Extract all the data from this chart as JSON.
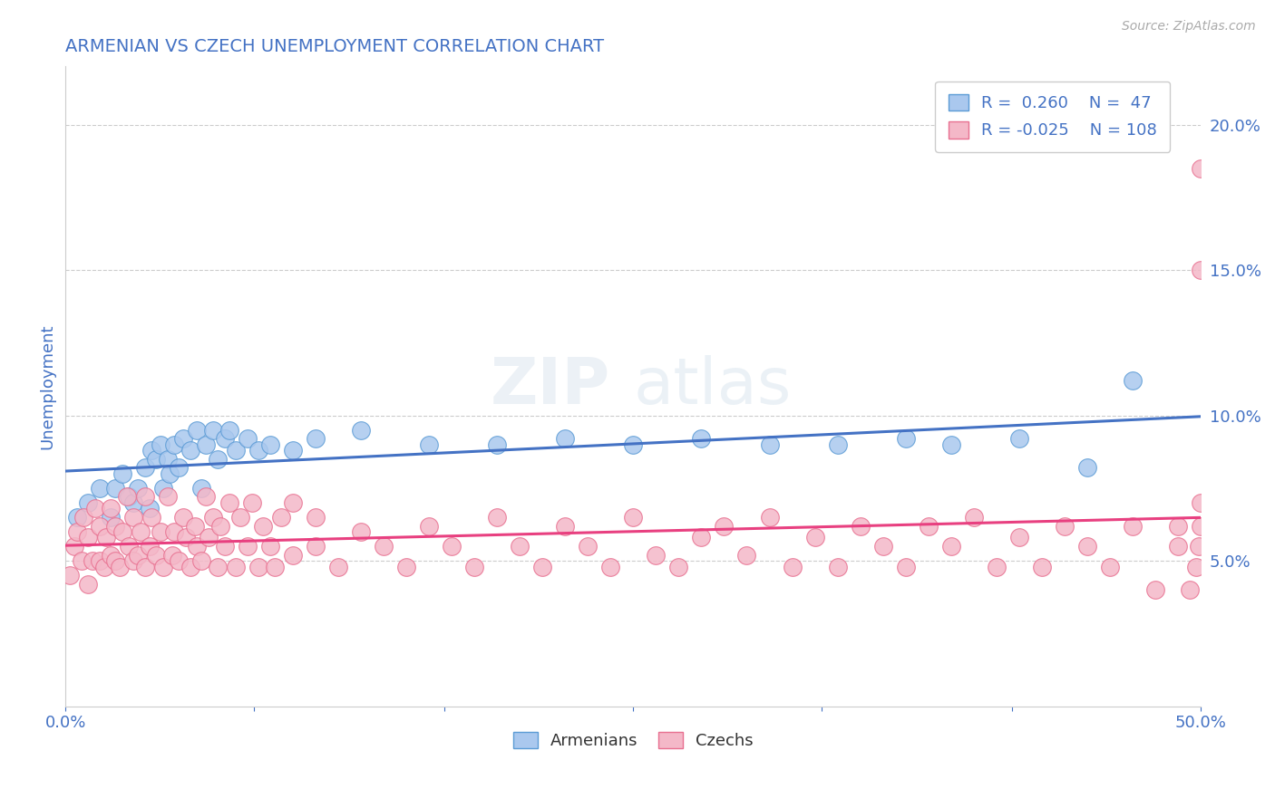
{
  "title": "ARMENIAN VS CZECH UNEMPLOYMENT CORRELATION CHART",
  "source_text": "Source: ZipAtlas.com",
  "ylabel": "Unemployment",
  "x_min": 0.0,
  "x_max": 0.5,
  "y_min": 0.0,
  "y_max": 0.22,
  "x_ticks": [
    0.0,
    0.083,
    0.167,
    0.25,
    0.333,
    0.417,
    0.5
  ],
  "x_tick_labels_show": [
    "0.0%",
    "",
    "",
    "",
    "",
    "",
    "50.0%"
  ],
  "y_ticks": [
    0.05,
    0.1,
    0.15,
    0.2
  ],
  "y_tick_labels": [
    "5.0%",
    "10.0%",
    "15.0%",
    "20.0%"
  ],
  "armenian_color": "#aac8ee",
  "armenian_edge_color": "#5b9bd5",
  "czech_color": "#f4b8c8",
  "czech_edge_color": "#e87090",
  "armenian_line_color": "#4472C4",
  "czech_line_color": "#E84080",
  "R_armenian": 0.26,
  "N_armenian": 47,
  "R_czech": -0.025,
  "N_czech": 108,
  "legend_label_armenian": "Armenians",
  "legend_label_czech": "Czechs",
  "background_color": "#ffffff",
  "grid_color": "#cccccc",
  "title_color": "#4472C4",
  "axis_label_color": "#4472C4",
  "legend_text_color": "#4472C4",
  "watermark_zip": "ZIP",
  "watermark_atlas": "atlas",
  "armenian_x": [
    0.005,
    0.01,
    0.015,
    0.02,
    0.022,
    0.025,
    0.028,
    0.03,
    0.032,
    0.035,
    0.037,
    0.038,
    0.04,
    0.042,
    0.043,
    0.045,
    0.046,
    0.048,
    0.05,
    0.052,
    0.055,
    0.058,
    0.06,
    0.062,
    0.065,
    0.067,
    0.07,
    0.072,
    0.075,
    0.08,
    0.085,
    0.09,
    0.1,
    0.11,
    0.13,
    0.16,
    0.19,
    0.22,
    0.25,
    0.28,
    0.31,
    0.34,
    0.37,
    0.39,
    0.42,
    0.45,
    0.47
  ],
  "armenian_y": [
    0.065,
    0.07,
    0.075,
    0.065,
    0.075,
    0.08,
    0.072,
    0.07,
    0.075,
    0.082,
    0.068,
    0.088,
    0.085,
    0.09,
    0.075,
    0.085,
    0.08,
    0.09,
    0.082,
    0.092,
    0.088,
    0.095,
    0.075,
    0.09,
    0.095,
    0.085,
    0.092,
    0.095,
    0.088,
    0.092,
    0.088,
    0.09,
    0.088,
    0.092,
    0.095,
    0.09,
    0.09,
    0.092,
    0.09,
    0.092,
    0.09,
    0.09,
    0.092,
    0.09,
    0.092,
    0.082,
    0.112
  ],
  "czech_x": [
    0.002,
    0.004,
    0.005,
    0.007,
    0.008,
    0.01,
    0.01,
    0.012,
    0.013,
    0.015,
    0.015,
    0.017,
    0.018,
    0.02,
    0.02,
    0.022,
    0.022,
    0.024,
    0.025,
    0.027,
    0.028,
    0.03,
    0.03,
    0.032,
    0.033,
    0.035,
    0.035,
    0.037,
    0.038,
    0.04,
    0.042,
    0.043,
    0.045,
    0.047,
    0.048,
    0.05,
    0.052,
    0.053,
    0.055,
    0.057,
    0.058,
    0.06,
    0.062,
    0.063,
    0.065,
    0.067,
    0.068,
    0.07,
    0.072,
    0.075,
    0.077,
    0.08,
    0.082,
    0.085,
    0.087,
    0.09,
    0.092,
    0.095,
    0.1,
    0.1,
    0.11,
    0.11,
    0.12,
    0.13,
    0.14,
    0.15,
    0.16,
    0.17,
    0.18,
    0.19,
    0.2,
    0.21,
    0.22,
    0.23,
    0.24,
    0.25,
    0.26,
    0.27,
    0.28,
    0.29,
    0.3,
    0.31,
    0.32,
    0.33,
    0.34,
    0.35,
    0.36,
    0.37,
    0.38,
    0.39,
    0.4,
    0.41,
    0.42,
    0.43,
    0.44,
    0.45,
    0.46,
    0.47,
    0.48,
    0.49,
    0.49,
    0.495,
    0.498,
    0.499,
    0.5,
    0.5,
    0.5,
    0.5
  ],
  "czech_y": [
    0.045,
    0.055,
    0.06,
    0.05,
    0.065,
    0.042,
    0.058,
    0.05,
    0.068,
    0.05,
    0.062,
    0.048,
    0.058,
    0.052,
    0.068,
    0.05,
    0.062,
    0.048,
    0.06,
    0.072,
    0.055,
    0.05,
    0.065,
    0.052,
    0.06,
    0.048,
    0.072,
    0.055,
    0.065,
    0.052,
    0.06,
    0.048,
    0.072,
    0.052,
    0.06,
    0.05,
    0.065,
    0.058,
    0.048,
    0.062,
    0.055,
    0.05,
    0.072,
    0.058,
    0.065,
    0.048,
    0.062,
    0.055,
    0.07,
    0.048,
    0.065,
    0.055,
    0.07,
    0.048,
    0.062,
    0.055,
    0.048,
    0.065,
    0.052,
    0.07,
    0.055,
    0.065,
    0.048,
    0.06,
    0.055,
    0.048,
    0.062,
    0.055,
    0.048,
    0.065,
    0.055,
    0.048,
    0.062,
    0.055,
    0.048,
    0.065,
    0.052,
    0.048,
    0.058,
    0.062,
    0.052,
    0.065,
    0.048,
    0.058,
    0.048,
    0.062,
    0.055,
    0.048,
    0.062,
    0.055,
    0.065,
    0.048,
    0.058,
    0.048,
    0.062,
    0.055,
    0.048,
    0.062,
    0.04,
    0.055,
    0.062,
    0.04,
    0.048,
    0.055,
    0.062,
    0.07,
    0.15,
    0.185
  ]
}
